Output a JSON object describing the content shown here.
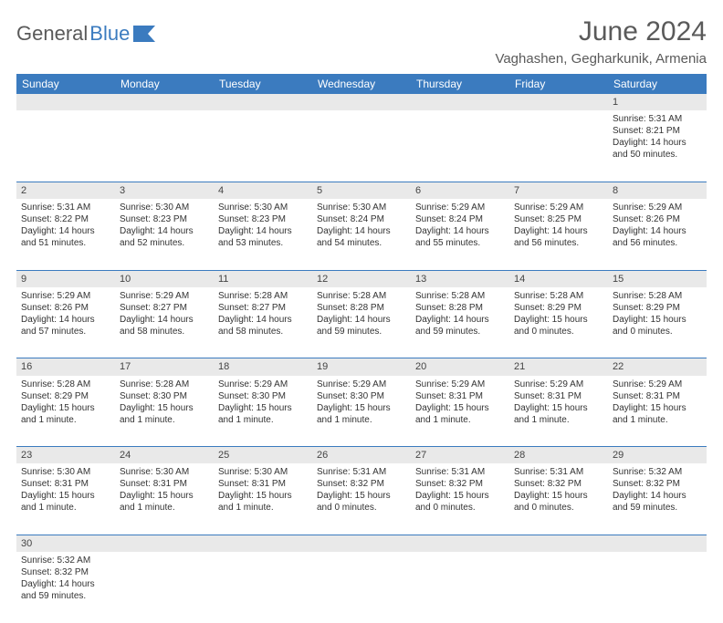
{
  "brand": {
    "part1": "General",
    "part2": "Blue"
  },
  "title": "June 2024",
  "location": "Vaghashen, Gegharkunik, Armenia",
  "colors": {
    "header_bg": "#3b7bbf",
    "header_fg": "#ffffff",
    "daynum_bg": "#e9e9e9",
    "page_bg": "#ffffff",
    "text": "#333333",
    "title": "#5a5a5a"
  },
  "typography": {
    "title_pt": 30,
    "location_pt": 15,
    "dayhdr_pt": 12,
    "cell_pt": 10
  },
  "day_headers": [
    "Sunday",
    "Monday",
    "Tuesday",
    "Wednesday",
    "Thursday",
    "Friday",
    "Saturday"
  ],
  "weeks": [
    [
      null,
      null,
      null,
      null,
      null,
      null,
      {
        "n": "1",
        "sr": "Sunrise: 5:31 AM",
        "ss": "Sunset: 8:21 PM",
        "d1": "Daylight: 14 hours",
        "d2": "and 50 minutes."
      }
    ],
    [
      {
        "n": "2",
        "sr": "Sunrise: 5:31 AM",
        "ss": "Sunset: 8:22 PM",
        "d1": "Daylight: 14 hours",
        "d2": "and 51 minutes."
      },
      {
        "n": "3",
        "sr": "Sunrise: 5:30 AM",
        "ss": "Sunset: 8:23 PM",
        "d1": "Daylight: 14 hours",
        "d2": "and 52 minutes."
      },
      {
        "n": "4",
        "sr": "Sunrise: 5:30 AM",
        "ss": "Sunset: 8:23 PM",
        "d1": "Daylight: 14 hours",
        "d2": "and 53 minutes."
      },
      {
        "n": "5",
        "sr": "Sunrise: 5:30 AM",
        "ss": "Sunset: 8:24 PM",
        "d1": "Daylight: 14 hours",
        "d2": "and 54 minutes."
      },
      {
        "n": "6",
        "sr": "Sunrise: 5:29 AM",
        "ss": "Sunset: 8:24 PM",
        "d1": "Daylight: 14 hours",
        "d2": "and 55 minutes."
      },
      {
        "n": "7",
        "sr": "Sunrise: 5:29 AM",
        "ss": "Sunset: 8:25 PM",
        "d1": "Daylight: 14 hours",
        "d2": "and 56 minutes."
      },
      {
        "n": "8",
        "sr": "Sunrise: 5:29 AM",
        "ss": "Sunset: 8:26 PM",
        "d1": "Daylight: 14 hours",
        "d2": "and 56 minutes."
      }
    ],
    [
      {
        "n": "9",
        "sr": "Sunrise: 5:29 AM",
        "ss": "Sunset: 8:26 PM",
        "d1": "Daylight: 14 hours",
        "d2": "and 57 minutes."
      },
      {
        "n": "10",
        "sr": "Sunrise: 5:29 AM",
        "ss": "Sunset: 8:27 PM",
        "d1": "Daylight: 14 hours",
        "d2": "and 58 minutes."
      },
      {
        "n": "11",
        "sr": "Sunrise: 5:28 AM",
        "ss": "Sunset: 8:27 PM",
        "d1": "Daylight: 14 hours",
        "d2": "and 58 minutes."
      },
      {
        "n": "12",
        "sr": "Sunrise: 5:28 AM",
        "ss": "Sunset: 8:28 PM",
        "d1": "Daylight: 14 hours",
        "d2": "and 59 minutes."
      },
      {
        "n": "13",
        "sr": "Sunrise: 5:28 AM",
        "ss": "Sunset: 8:28 PM",
        "d1": "Daylight: 14 hours",
        "d2": "and 59 minutes."
      },
      {
        "n": "14",
        "sr": "Sunrise: 5:28 AM",
        "ss": "Sunset: 8:29 PM",
        "d1": "Daylight: 15 hours",
        "d2": "and 0 minutes."
      },
      {
        "n": "15",
        "sr": "Sunrise: 5:28 AM",
        "ss": "Sunset: 8:29 PM",
        "d1": "Daylight: 15 hours",
        "d2": "and 0 minutes."
      }
    ],
    [
      {
        "n": "16",
        "sr": "Sunrise: 5:28 AM",
        "ss": "Sunset: 8:29 PM",
        "d1": "Daylight: 15 hours",
        "d2": "and 1 minute."
      },
      {
        "n": "17",
        "sr": "Sunrise: 5:28 AM",
        "ss": "Sunset: 8:30 PM",
        "d1": "Daylight: 15 hours",
        "d2": "and 1 minute."
      },
      {
        "n": "18",
        "sr": "Sunrise: 5:29 AM",
        "ss": "Sunset: 8:30 PM",
        "d1": "Daylight: 15 hours",
        "d2": "and 1 minute."
      },
      {
        "n": "19",
        "sr": "Sunrise: 5:29 AM",
        "ss": "Sunset: 8:30 PM",
        "d1": "Daylight: 15 hours",
        "d2": "and 1 minute."
      },
      {
        "n": "20",
        "sr": "Sunrise: 5:29 AM",
        "ss": "Sunset: 8:31 PM",
        "d1": "Daylight: 15 hours",
        "d2": "and 1 minute."
      },
      {
        "n": "21",
        "sr": "Sunrise: 5:29 AM",
        "ss": "Sunset: 8:31 PM",
        "d1": "Daylight: 15 hours",
        "d2": "and 1 minute."
      },
      {
        "n": "22",
        "sr": "Sunrise: 5:29 AM",
        "ss": "Sunset: 8:31 PM",
        "d1": "Daylight: 15 hours",
        "d2": "and 1 minute."
      }
    ],
    [
      {
        "n": "23",
        "sr": "Sunrise: 5:30 AM",
        "ss": "Sunset: 8:31 PM",
        "d1": "Daylight: 15 hours",
        "d2": "and 1 minute."
      },
      {
        "n": "24",
        "sr": "Sunrise: 5:30 AM",
        "ss": "Sunset: 8:31 PM",
        "d1": "Daylight: 15 hours",
        "d2": "and 1 minute."
      },
      {
        "n": "25",
        "sr": "Sunrise: 5:30 AM",
        "ss": "Sunset: 8:31 PM",
        "d1": "Daylight: 15 hours",
        "d2": "and 1 minute."
      },
      {
        "n": "26",
        "sr": "Sunrise: 5:31 AM",
        "ss": "Sunset: 8:32 PM",
        "d1": "Daylight: 15 hours",
        "d2": "and 0 minutes."
      },
      {
        "n": "27",
        "sr": "Sunrise: 5:31 AM",
        "ss": "Sunset: 8:32 PM",
        "d1": "Daylight: 15 hours",
        "d2": "and 0 minutes."
      },
      {
        "n": "28",
        "sr": "Sunrise: 5:31 AM",
        "ss": "Sunset: 8:32 PM",
        "d1": "Daylight: 15 hours",
        "d2": "and 0 minutes."
      },
      {
        "n": "29",
        "sr": "Sunrise: 5:32 AM",
        "ss": "Sunset: 8:32 PM",
        "d1": "Daylight: 14 hours",
        "d2": "and 59 minutes."
      }
    ],
    [
      {
        "n": "30",
        "sr": "Sunrise: 5:32 AM",
        "ss": "Sunset: 8:32 PM",
        "d1": "Daylight: 14 hours",
        "d2": "and 59 minutes."
      },
      null,
      null,
      null,
      null,
      null,
      null
    ]
  ]
}
